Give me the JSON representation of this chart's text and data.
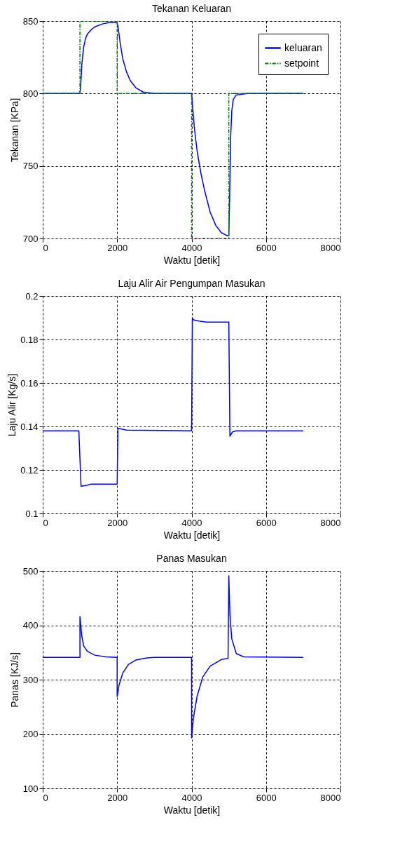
{
  "chart_data": [
    {
      "type": "line",
      "title": "Tekanan Keluaran",
      "xlabel": "Waktu [detik]",
      "ylabel": "Tekanan [KPa]",
      "xlim": [
        0,
        8000
      ],
      "xticks": [
        0,
        2000,
        4000,
        6000,
        8000
      ],
      "ylim": [
        700,
        850
      ],
      "yticks": [
        700,
        750,
        800,
        850
      ],
      "grid": true,
      "legend": "top right",
      "series": [
        {
          "name": "keluaran",
          "color": "#0000ff",
          "line_style": "solid",
          "x": [
            0,
            1000,
            1020,
            1050,
            1100,
            1150,
            1200,
            1300,
            1400,
            1600,
            1800,
            2000,
            2030,
            2080,
            2150,
            2250,
            2350,
            2500,
            2700,
            3000,
            4000,
            4030,
            4080,
            4150,
            4250,
            4350,
            4500,
            4650,
            4800,
            4950,
            5000,
            5020,
            5050,
            5080,
            5120,
            5200,
            5500,
            7000
          ],
          "values": [
            800,
            800,
            805,
            820,
            832,
            838,
            841,
            844,
            846,
            848,
            849,
            849,
            845,
            835,
            824,
            815,
            809,
            804,
            801,
            800,
            800,
            790,
            775,
            760,
            745,
            733,
            718,
            709,
            704,
            702,
            702,
            725,
            770,
            788,
            796,
            799,
            800,
            800
          ]
        },
        {
          "name": "setpoint",
          "color": "#008000",
          "line_style": "dashed",
          "x": [
            0,
            1000,
            1000,
            2000,
            2000,
            4000,
            4000,
            5000,
            5000,
            7000
          ],
          "values": [
            800,
            800,
            850,
            850,
            800,
            800,
            700,
            700,
            800,
            800
          ]
        }
      ]
    },
    {
      "type": "line",
      "title": "Laju Alir Air Pengumpan Masukan",
      "xlabel": "Waktu [detik]",
      "ylabel": "Laju Alir [Kg/s]",
      "xlim": [
        0,
        8000
      ],
      "xticks": [
        0,
        2000,
        4000,
        6000,
        8000
      ],
      "ylim": [
        0.1,
        0.2
      ],
      "yticks": [
        0.1,
        0.12,
        0.14,
        0.16,
        0.18,
        0.2
      ],
      "grid": true,
      "series": [
        {
          "color": "#0000ff",
          "line_style": "solid",
          "x": [
            0,
            970,
            1000,
            1030,
            1200,
            1300,
            2000,
            2020,
            2250,
            4000,
            4020,
            4050,
            4200,
            4400,
            5000,
            5030,
            5100,
            5200,
            7000
          ],
          "values": [
            0.138,
            0.138,
            0.125,
            0.1125,
            0.113,
            0.1135,
            0.1135,
            0.1392,
            0.1383,
            0.138,
            0.19,
            0.189,
            0.1885,
            0.188,
            0.188,
            0.1355,
            0.1375,
            0.138,
            0.138
          ]
        }
      ]
    },
    {
      "type": "line",
      "title": "Panas Masukan",
      "xlabel": "Waktu [detik]",
      "ylabel": "Panas [KJ/s]",
      "xlim": [
        0,
        8000
      ],
      "xticks": [
        0,
        2000,
        4000,
        6000,
        8000
      ],
      "ylim": [
        100,
        500
      ],
      "yticks": [
        100,
        200,
        300,
        400,
        500
      ],
      "grid": true,
      "series": [
        {
          "color": "#0000ff",
          "line_style": "solid",
          "x": [
            0,
            1000,
            1000,
            1050,
            1100,
            1200,
            1400,
            1700,
            2000,
            2000,
            2050,
            2150,
            2300,
            2500,
            2800,
            3000,
            4000,
            4000,
            4050,
            4150,
            4300,
            4500,
            4800,
            4980,
            5000,
            5030,
            5080,
            5200,
            5400,
            7000
          ],
          "values": [
            341,
            341,
            416,
            380,
            362,
            352,
            345,
            342,
            341,
            269,
            290,
            312,
            328,
            336,
            340,
            341,
            341,
            193,
            230,
            270,
            305,
            325,
            337,
            339,
            491,
            420,
            375,
            348,
            342,
            341
          ]
        }
      ]
    }
  ]
}
